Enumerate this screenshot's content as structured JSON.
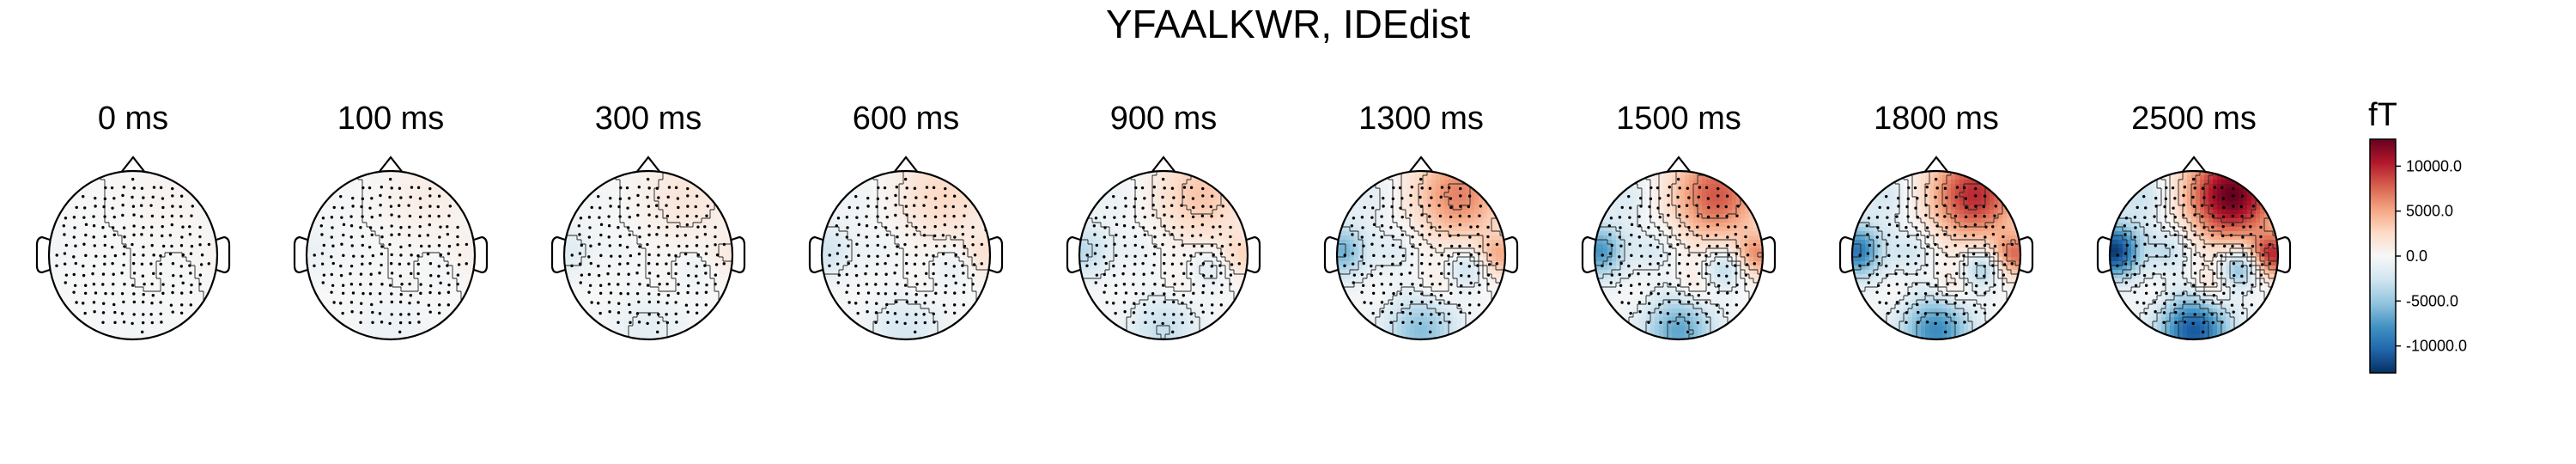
{
  "chart_data": {
    "type": "topomap",
    "title": "YFAALKWR, IDEdist",
    "times_ms": [
      0,
      100,
      300,
      600,
      900,
      1300,
      1500,
      1800,
      2500
    ],
    "panel_labels": [
      "0 ms",
      "100 ms",
      "300 ms",
      "600 ms",
      "900 ms",
      "1300 ms",
      "1500 ms",
      "1800 ms",
      "2500 ms"
    ],
    "unit": "fT",
    "colormap": "RdBu_r",
    "vlim": [
      -13000,
      13000
    ],
    "colorbar_ticks": [
      10000,
      5000,
      0,
      -5000,
      -10000
    ],
    "colorbar_tick_labels": [
      "10000.0",
      "5000.0",
      "0.0",
      "-5000.0",
      "-10000.0"
    ],
    "amplitude_scale": [
      0.03,
      0.07,
      0.12,
      0.2,
      0.28,
      0.5,
      0.62,
      0.75,
      1.0
    ],
    "field_sources": [
      {
        "x": 0.45,
        "y": -0.72,
        "amp": 13000,
        "sigma": 0.38
      },
      {
        "x": -0.95,
        "y": -0.05,
        "amp": -12500,
        "sigma": 0.22
      },
      {
        "x": 0.0,
        "y": 0.9,
        "amp": -11000,
        "sigma": 0.3
      },
      {
        "x": 0.95,
        "y": 0.0,
        "amp": 9000,
        "sigma": 0.18
      },
      {
        "x": 0.55,
        "y": 0.15,
        "amp": -6000,
        "sigma": 0.16
      },
      {
        "x": -0.3,
        "y": -0.1,
        "amp": -4000,
        "sigma": 0.18
      },
      {
        "x": -0.6,
        "y": -0.7,
        "amp": -3000,
        "sigma": 0.22
      },
      {
        "x": 0.2,
        "y": 0.35,
        "amp": 3500,
        "sigma": 0.15
      }
    ],
    "sensor_grid": {
      "spacing": 0.115,
      "head_radius": 1.0
    }
  }
}
